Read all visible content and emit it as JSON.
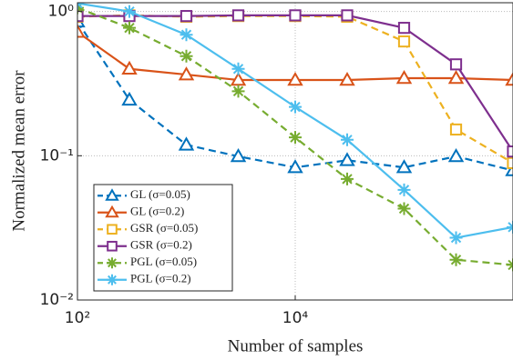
{
  "chart_data": {
    "type": "line",
    "y_label": "Normalized mean error",
    "x_label": "Number of samples",
    "x": [
      100,
      300,
      1000,
      3000,
      10000,
      30000,
      100000,
      300000,
      1000000
    ],
    "xlim": [
      100,
      1000000
    ],
    "ylim": [
      0.01,
      1.15
    ],
    "log_x": true,
    "log_y": true,
    "grid": true,
    "legend": "lower left",
    "xticks": [
      {
        "value": 100,
        "label": "10²"
      },
      {
        "value": 10000,
        "label": "10⁴"
      }
    ],
    "yticks": [
      {
        "value": 0.01,
        "label": "10⁻²"
      },
      {
        "value": 0.1,
        "label": "10⁻¹"
      },
      {
        "value": 1,
        "label": "10⁰"
      }
    ],
    "series": [
      {
        "name": "GL (σ=0.05)",
        "color": "#0072BD",
        "marker": "triangle",
        "dashed": true,
        "values": [
          0.85,
          0.244,
          0.119,
          0.099,
          0.083,
          0.093,
          0.083,
          0.099,
          0.079
        ]
      },
      {
        "name": "GL (σ=0.2)",
        "color": "#D95319",
        "marker": "triangle",
        "dashed": false,
        "values": [
          0.72,
          0.4,
          0.365,
          0.335,
          0.335,
          0.335,
          0.345,
          0.345,
          0.335
        ]
      },
      {
        "name": "GSR (σ=0.05)",
        "color": "#EDB120",
        "marker": "square",
        "dashed": true,
        "values": [
          0.92,
          0.94,
          0.92,
          0.93,
          0.93,
          0.92,
          0.62,
          0.152,
          0.089
        ]
      },
      {
        "name": "GSR (σ=0.2)",
        "color": "#7E2F8E",
        "marker": "square",
        "dashed": false,
        "values": [
          0.93,
          0.93,
          0.93,
          0.94,
          0.94,
          0.94,
          0.77,
          0.43,
          0.107
        ]
      },
      {
        "name": "PGL (σ=0.05)",
        "color": "#77AC30",
        "marker": "asterisk",
        "dashed": true,
        "values": [
          1.06,
          0.77,
          0.49,
          0.28,
          0.134,
          0.069,
          0.043,
          0.019,
          0.0175
        ]
      },
      {
        "name": "PGL (σ=0.2)",
        "color": "#4DBEEE",
        "marker": "asterisk",
        "dashed": false,
        "values": [
          1.14,
          1.0,
          0.69,
          0.4,
          0.218,
          0.129,
          0.058,
          0.027,
          0.032
        ]
      }
    ]
  }
}
